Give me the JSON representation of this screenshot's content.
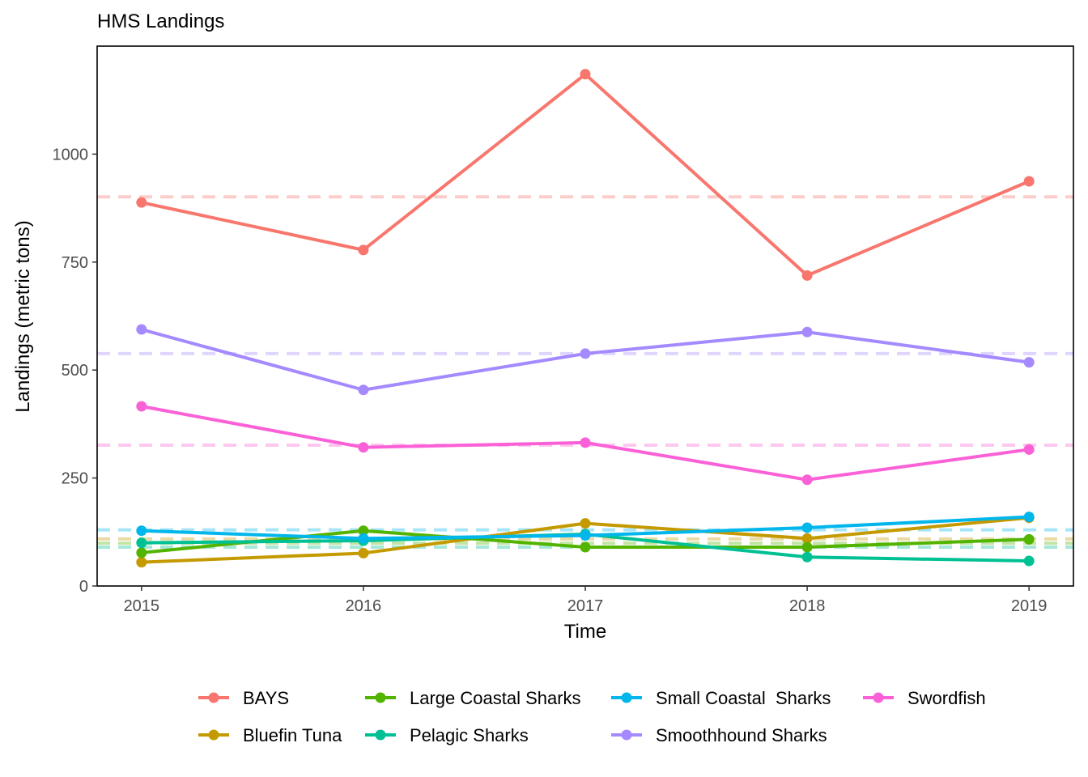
{
  "chart_data": {
    "type": "line",
    "title": "HMS Landings",
    "xlabel": "Time",
    "ylabel": "Landings (metric tons)",
    "x": [
      2015,
      2016,
      2017,
      2018,
      2019
    ],
    "xlim": [
      2014.8,
      2019.2
    ],
    "ylim": [
      0,
      1250
    ],
    "yticks": [
      0,
      250,
      500,
      750,
      1000
    ],
    "grid": false,
    "legend_position": "bottom",
    "series": [
      {
        "name": "BAYS",
        "color": "#F8766D",
        "values": [
          888,
          778,
          1185,
          719,
          937
        ],
        "mean": 901
      },
      {
        "name": "Bluefin Tuna",
        "color": "#C49A00",
        "values": [
          55,
          76,
          145,
          110,
          158
        ],
        "mean": 109
      },
      {
        "name": "Large Coastal Sharks",
        "color": "#53B400",
        "values": [
          77,
          128,
          90,
          90,
          108
        ],
        "mean": 99
      },
      {
        "name": "Pelagic Sharks",
        "color": "#00C094",
        "values": [
          100,
          105,
          120,
          67,
          58
        ],
        "mean": 90
      },
      {
        "name": "Small Coastal  Sharks",
        "color": "#00B6EB",
        "values": [
          128,
          110,
          117,
          135,
          160
        ],
        "mean": 130
      },
      {
        "name": "Smoothhound Sharks",
        "color": "#A58AFF",
        "values": [
          594,
          454,
          538,
          588,
          518
        ],
        "mean": 538
      },
      {
        "name": "Swordfish",
        "color": "#FB61D7",
        "values": [
          416,
          321,
          332,
          246,
          316
        ],
        "mean": 326
      }
    ]
  }
}
